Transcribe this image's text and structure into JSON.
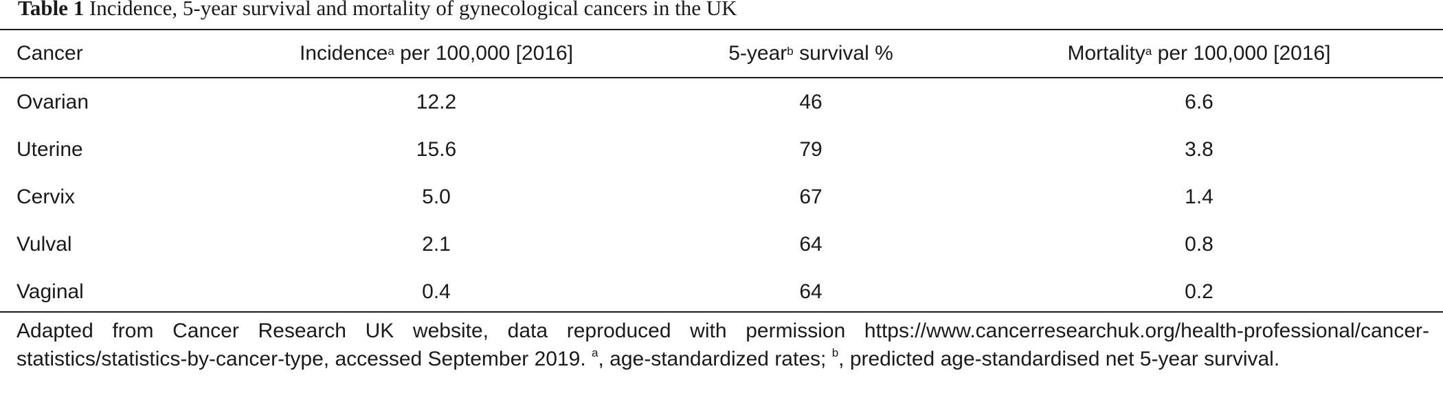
{
  "caption": {
    "label": "Table 1",
    "title": "Incidence, 5-year survival and mortality of gynecological cancers in the UK"
  },
  "table": {
    "headers": [
      {
        "text": "Cancer",
        "sup": "",
        "suffix": ""
      },
      {
        "text": "Incidence",
        "sup": "a",
        "suffix": " per 100,000 [2016]"
      },
      {
        "text": "5-year",
        "sup": "b",
        "suffix": " survival %"
      },
      {
        "text": "Mortality",
        "sup": "a",
        "suffix": " per 100,000 [2016]"
      }
    ],
    "rows": [
      [
        "Ovarian",
        "12.2",
        "46",
        "6.6"
      ],
      [
        "Uterine",
        "15.6",
        "79",
        "3.8"
      ],
      [
        "Cervix",
        "5.0",
        "67",
        "1.4"
      ],
      [
        "Vulval",
        "2.1",
        "64",
        "0.8"
      ],
      [
        "Vaginal",
        "0.4",
        "64",
        "0.2"
      ]
    ]
  },
  "footnote": {
    "text1": "Adapted from Cancer Research UK website, data reproduced with permission https://www.cancerresearchuk.org/health-professional/cancer-statistics/statistics-by-cancer-type, accessed September 2019. ",
    "sup_a": "a",
    "text2": ", age-standardized rates; ",
    "sup_b": "b",
    "text3": ", predicted age-standardised net 5-year survival."
  }
}
